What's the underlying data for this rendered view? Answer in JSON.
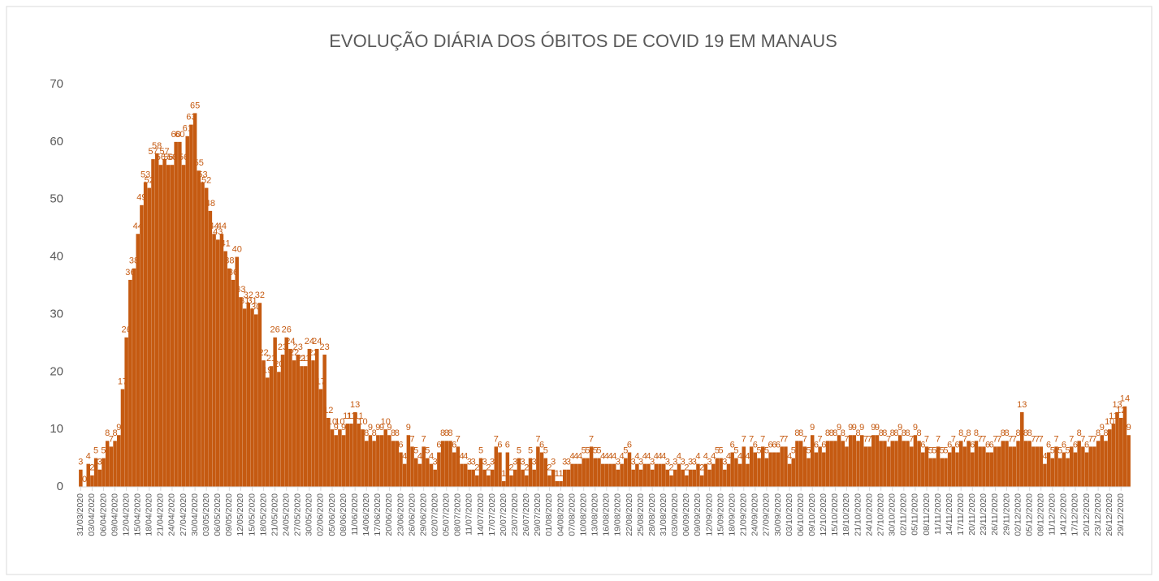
{
  "chart_data": {
    "type": "bar",
    "title": "EVOLUÇÃO DIÁRIA DOS ÓBITOS DE COVID 19 EM MANAUS",
    "color": "#c55a11",
    "ylim": [
      0,
      70
    ],
    "yticks": [
      0,
      10,
      20,
      30,
      40,
      50,
      60,
      70
    ],
    "grid": false,
    "categories": [
      "31/03/2020",
      null,
      null,
      "03/04/2020",
      null,
      null,
      "06/04/2020",
      null,
      null,
      "09/04/2020",
      null,
      null,
      "12/04/2020",
      null,
      null,
      "15/04/2020",
      null,
      null,
      "18/04/2020",
      null,
      null,
      "21/04/2020",
      null,
      null,
      "24/04/2020",
      null,
      null,
      "27/04/2020",
      null,
      null,
      "30/04/2020",
      null,
      null,
      "03/05/2020",
      null,
      null,
      "06/05/2020",
      null,
      null,
      "09/05/2020",
      null,
      null,
      "12/05/2020",
      null,
      null,
      "15/05/2020",
      null,
      null,
      "18/05/2020",
      null,
      null,
      "21/05/2020",
      null,
      null,
      "24/05/2020",
      null,
      null,
      "27/05/2020",
      null,
      null,
      "30/05/2020",
      null,
      null,
      "02/06/2020",
      null,
      null,
      "05/06/2020",
      null,
      null,
      "08/06/2020",
      null,
      null,
      "11/06/2020",
      null,
      null,
      "14/06/2020",
      null,
      null,
      "17/06/2020",
      null,
      null,
      "20/06/2020",
      null,
      null,
      "23/06/2020",
      null,
      null,
      "26/06/2020",
      null,
      null,
      "29/06/2020",
      null,
      null,
      "02/07/2020",
      null,
      null,
      "05/07/2020",
      null,
      null,
      "08/07/2020",
      null,
      null,
      "11/07/2020",
      null,
      null,
      "14/07/2020",
      null,
      null,
      "17/07/2020",
      null,
      null,
      "20/07/2020",
      null,
      null,
      "23/07/2020",
      null,
      null,
      "26/07/2020",
      null,
      null,
      "29/07/2020",
      null,
      null,
      "01/08/2020",
      null,
      null,
      "04/08/2020",
      null,
      null,
      "07/08/2020",
      null,
      null,
      "10/08/2020",
      null,
      null,
      "13/08/2020",
      null,
      null,
      "16/08/2020",
      null,
      null,
      "19/08/2020",
      null,
      null,
      "22/08/2020",
      null,
      null,
      "25/08/2020",
      null,
      null,
      "28/08/2020",
      null,
      null,
      "31/08/2020",
      null,
      null,
      "03/09/2020",
      null,
      null,
      "06/09/2020",
      null,
      null,
      "09/09/2020",
      null,
      null,
      "12/09/2020",
      null,
      null,
      "15/09/2020",
      null,
      null,
      "18/09/2020",
      null,
      null,
      "21/09/2020",
      null,
      null,
      "24/09/2020",
      null,
      null,
      "27/09/2020",
      null,
      null,
      "30/09/2020",
      null,
      null,
      "03/10/2020",
      null,
      null,
      "06/10/2020",
      null,
      null,
      "09/10/2020",
      null,
      null,
      "12/10/2020",
      null,
      null,
      "15/10/2020",
      null,
      null,
      "18/10/2020",
      null,
      null,
      "21/10/2020",
      null,
      null,
      "24/10/2020",
      null,
      null,
      "27/10/2020",
      null,
      null,
      "30/10/2020",
      null,
      null,
      "02/11/2020",
      null,
      null,
      "05/11/2020",
      null,
      null,
      "08/11/2020",
      null,
      null,
      "11/11/2020",
      null,
      null,
      "14/11/2020",
      null,
      null,
      "17/11/2020",
      null,
      null,
      "20/11/2020",
      null,
      null,
      "23/11/2020",
      null,
      null,
      "26/11/2020",
      null,
      null,
      "29/11/2020",
      null,
      null,
      "02/12/2020",
      null,
      null,
      "05/12/2020",
      null,
      null,
      "08/12/2020",
      null,
      null,
      "11/12/2020",
      null,
      null,
      "14/12/2020",
      null,
      null,
      "17/12/2020",
      null,
      null,
      "20/12/2020",
      null,
      null,
      "23/12/2020",
      null,
      null,
      "26/12/2020",
      null,
      null,
      "29/12/2020",
      null,
      null
    ],
    "values": [
      3,
      0,
      4,
      2,
      5,
      3,
      5,
      8,
      7,
      8,
      9,
      17,
      26,
      36,
      38,
      44,
      49,
      53,
      52,
      57,
      58,
      56,
      57,
      56,
      56,
      60,
      60,
      56,
      61,
      63,
      65,
      55,
      53,
      52,
      48,
      44,
      43,
      44,
      41,
      38,
      36,
      40,
      33,
      31,
      32,
      31,
      30,
      32,
      22,
      19,
      21,
      26,
      20,
      23,
      26,
      24,
      22,
      23,
      21,
      21,
      24,
      22,
      24,
      17,
      23,
      12,
      10,
      9,
      10,
      9,
      11,
      11,
      13,
      11,
      10,
      8,
      9,
      8,
      9,
      9,
      10,
      9,
      8,
      8,
      6,
      4,
      9,
      7,
      5,
      4,
      7,
      5,
      4,
      3,
      6,
      8,
      8,
      8,
      6,
      7,
      4,
      4,
      3,
      3,
      2,
      5,
      3,
      2,
      3,
      7,
      6,
      1,
      6,
      2,
      3,
      5,
      3,
      2,
      5,
      3,
      7,
      6,
      5,
      2,
      3,
      1,
      1,
      3,
      3,
      4,
      4,
      4,
      5,
      5,
      7,
      5,
      5,
      4,
      4,
      4,
      4,
      3,
      4,
      5,
      6,
      3,
      4,
      3,
      4,
      4,
      3,
      4,
      4,
      4,
      3,
      2,
      3,
      4,
      3,
      2,
      3,
      3,
      4,
      2,
      4,
      3,
      4,
      5,
      5,
      3,
      4,
      6,
      5,
      4,
      7,
      4,
      7,
      6,
      5,
      7,
      5,
      6,
      6,
      6,
      7,
      7,
      4,
      5,
      8,
      8,
      7,
      5,
      9,
      6,
      7,
      6,
      8,
      8,
      8,
      9,
      8,
      7,
      9,
      9,
      8,
      9,
      7,
      7,
      9,
      9,
      8,
      8,
      7,
      8,
      8,
      9,
      8,
      8,
      7,
      9,
      8,
      6,
      7,
      5,
      5,
      7,
      5,
      5,
      6,
      7,
      6,
      8,
      7,
      8,
      6,
      8,
      7,
      7,
      6,
      6,
      7,
      7,
      8,
      8,
      7,
      7,
      8,
      13,
      8,
      8,
      7,
      7,
      7,
      4,
      6,
      5,
      7,
      5,
      6,
      5,
      7,
      6,
      8,
      7,
      6,
      7,
      7,
      8,
      9,
      8,
      10,
      11,
      13,
      12,
      14,
      9
    ]
  }
}
